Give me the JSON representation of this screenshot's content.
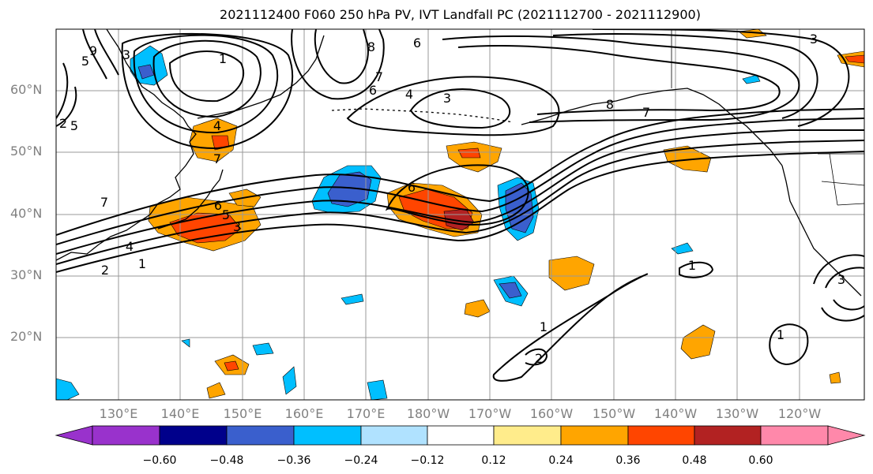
{
  "title": "2021112400 F060 250 hPa PV, IVT Landfall PC (2021112700 - 2021112900)",
  "map": {
    "lat_labels": [
      "60°N",
      "50°N",
      "40°N",
      "30°N",
      "20°N"
    ],
    "lon_labels": [
      "130°E",
      "140°E",
      "150°E",
      "160°E",
      "170°E",
      "180°W",
      "170°W",
      "160°W",
      "150°W",
      "140°W",
      "130°W",
      "120°W"
    ]
  },
  "colorbar": {
    "colors": [
      "#9932cc",
      "#00008b",
      "#3a5fcd",
      "#00bfff",
      "#b0e2ff",
      "#ffffff",
      "#ffec8b",
      "#ffa500",
      "#ff4500",
      "#b22222",
      "#ff88aa"
    ],
    "tick_labels": [
      "−0.60",
      "−0.48",
      "−0.36",
      "−0.24",
      "−0.12",
      "0.12",
      "0.24",
      "0.36",
      "0.48",
      "0.60"
    ]
  },
  "contour_labels": [
    "9",
    "5",
    "3",
    "1",
    "6",
    "8",
    "6",
    "7",
    "4",
    "3",
    "8",
    "7",
    "3",
    "2",
    "5",
    "4",
    "7",
    "7",
    "6",
    "5",
    "3",
    "4",
    "2",
    "1",
    "6",
    "1",
    "1",
    "2",
    "1",
    "3"
  ]
}
